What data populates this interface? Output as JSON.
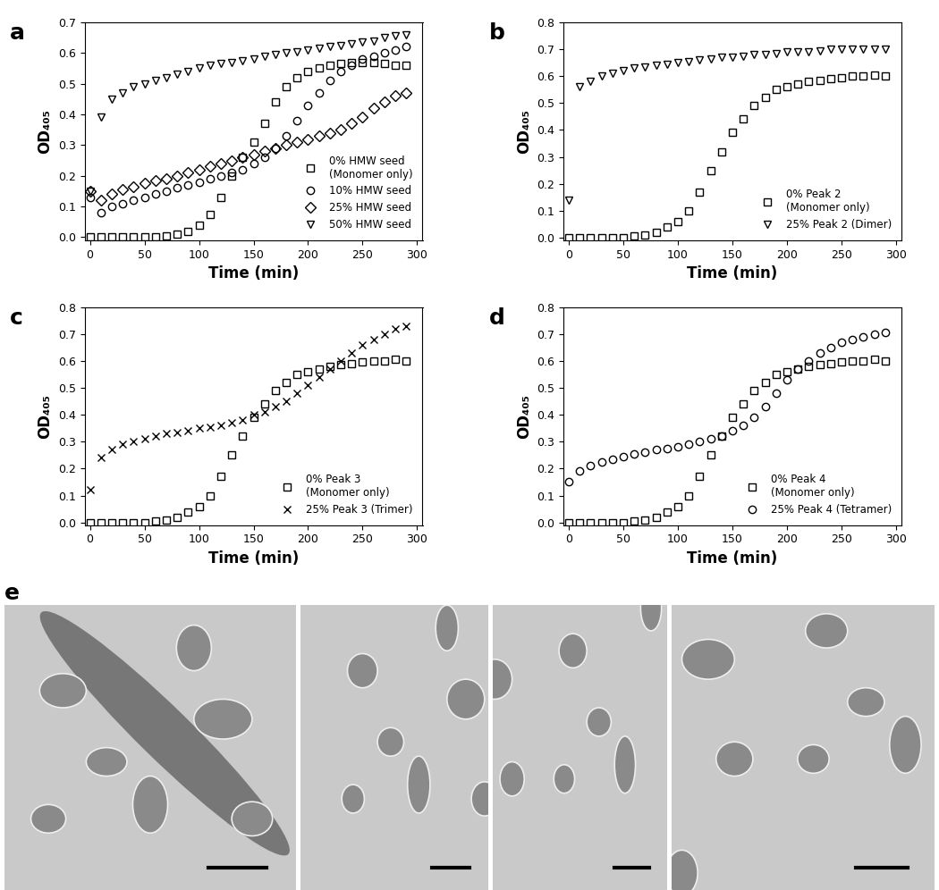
{
  "chart_data": [
    {
      "type": "scatter",
      "title": "a",
      "x_label": "Time (min)",
      "y_label": "OD₄₀₅",
      "x": [
        0,
        10,
        20,
        30,
        40,
        50,
        60,
        70,
        80,
        90,
        100,
        110,
        120,
        130,
        140,
        150,
        160,
        170,
        180,
        190,
        200,
        210,
        220,
        230,
        240,
        250,
        260,
        270,
        280,
        290
      ],
      "xlim": [
        -5,
        305
      ],
      "xticks": [
        0,
        50,
        100,
        150,
        200,
        250,
        300
      ],
      "ylim": [
        -0.01,
        0.7
      ],
      "yticks": [
        0.0,
        0.1,
        0.2,
        0.3,
        0.4,
        0.5,
        0.6,
        0.7
      ],
      "legend": "lower right",
      "series": [
        {
          "name": "0% HMW seed\n(Monomer only)",
          "color": "#000000",
          "marker": "square",
          "values": [
            0,
            0,
            0,
            0,
            0,
            0,
            0.002,
            0.005,
            0.01,
            0.02,
            0.04,
            0.075,
            0.13,
            0.2,
            0.26,
            0.31,
            0.37,
            0.44,
            0.49,
            0.52,
            0.54,
            0.55,
            0.56,
            0.565,
            0.57,
            0.57,
            0.57,
            0.565,
            0.56,
            0.56
          ]
        },
        {
          "name": "10% HMW seed",
          "color": "#000000",
          "marker": "circle",
          "values": [
            0.13,
            0.08,
            0.1,
            0.11,
            0.12,
            0.13,
            0.14,
            0.15,
            0.16,
            0.17,
            0.18,
            0.19,
            0.2,
            0.21,
            0.22,
            0.24,
            0.26,
            0.29,
            0.33,
            0.38,
            0.43,
            0.47,
            0.51,
            0.54,
            0.56,
            0.58,
            0.59,
            0.6,
            0.61,
            0.62
          ]
        },
        {
          "name": "25% HMW seed",
          "color": "#000000",
          "marker": "diamond",
          "values": [
            0.15,
            0.12,
            0.14,
            0.155,
            0.165,
            0.175,
            0.185,
            0.19,
            0.2,
            0.21,
            0.22,
            0.23,
            0.24,
            0.25,
            0.26,
            0.27,
            0.28,
            0.29,
            0.3,
            0.31,
            0.32,
            0.33,
            0.34,
            0.35,
            0.37,
            0.39,
            0.42,
            0.44,
            0.46,
            0.47
          ]
        },
        {
          "name": "50% HMW seed",
          "color": "#000000",
          "marker": "triangle_down",
          "values": [
            0.15,
            0.39,
            0.45,
            0.47,
            0.49,
            0.5,
            0.51,
            0.52,
            0.53,
            0.54,
            0.55,
            0.56,
            0.565,
            0.57,
            0.575,
            0.58,
            0.59,
            0.595,
            0.6,
            0.605,
            0.61,
            0.615,
            0.62,
            0.625,
            0.63,
            0.635,
            0.64,
            0.65,
            0.655,
            0.66
          ]
        }
      ]
    },
    {
      "type": "scatter",
      "title": "b",
      "x_label": "Time (min)",
      "y_label": "OD₄₀₅",
      "x": [
        0,
        10,
        20,
        30,
        40,
        50,
        60,
        70,
        80,
        90,
        100,
        110,
        120,
        130,
        140,
        150,
        160,
        170,
        180,
        190,
        200,
        210,
        220,
        230,
        240,
        250,
        260,
        270,
        280,
        290
      ],
      "xlim": [
        -5,
        305
      ],
      "xticks": [
        0,
        50,
        100,
        150,
        200,
        250,
        300
      ],
      "ylim": [
        -0.01,
        0.8
      ],
      "yticks": [
        0.0,
        0.1,
        0.2,
        0.3,
        0.4,
        0.5,
        0.6,
        0.7,
        0.8
      ],
      "legend": "lower right",
      "series": [
        {
          "name": "0% Peak 2\n(Monomer only)",
          "color": "#000000",
          "marker": "square",
          "values": [
            0,
            0,
            0,
            0,
            0,
            0,
            0.005,
            0.01,
            0.02,
            0.04,
            0.06,
            0.1,
            0.17,
            0.25,
            0.32,
            0.39,
            0.44,
            0.49,
            0.52,
            0.55,
            0.56,
            0.57,
            0.58,
            0.585,
            0.59,
            0.595,
            0.6,
            0.6,
            0.605,
            0.6
          ]
        },
        {
          "name": "25% Peak 2 (Dimer)",
          "color": "#000000",
          "marker": "triangle_down",
          "values": [
            0.14,
            0.56,
            0.58,
            0.6,
            0.61,
            0.62,
            0.63,
            0.635,
            0.64,
            0.645,
            0.65,
            0.655,
            0.66,
            0.665,
            0.67,
            0.67,
            0.675,
            0.68,
            0.68,
            0.685,
            0.69,
            0.69,
            0.69,
            0.695,
            0.7,
            0.7,
            0.7,
            0.7,
            0.7,
            0.7
          ]
        }
      ]
    },
    {
      "type": "scatter",
      "title": "c",
      "x_label": "Time (min)",
      "y_label": "OD₄₀₅",
      "x": [
        0,
        10,
        20,
        30,
        40,
        50,
        60,
        70,
        80,
        90,
        100,
        110,
        120,
        130,
        140,
        150,
        160,
        170,
        180,
        190,
        200,
        210,
        220,
        230,
        240,
        250,
        260,
        270,
        280,
        290
      ],
      "xlim": [
        -5,
        305
      ],
      "xticks": [
        0,
        50,
        100,
        150,
        200,
        250,
        300
      ],
      "ylim": [
        -0.01,
        0.8
      ],
      "yticks": [
        0.0,
        0.1,
        0.2,
        0.3,
        0.4,
        0.5,
        0.6,
        0.7,
        0.8
      ],
      "legend": "lower right",
      "series": [
        {
          "name": "0% Peak 3\n(Monomer only)",
          "color": "#000000",
          "marker": "square",
          "values": [
            0,
            0,
            0,
            0,
            0,
            0,
            0.005,
            0.01,
            0.02,
            0.04,
            0.06,
            0.1,
            0.17,
            0.25,
            0.32,
            0.39,
            0.44,
            0.49,
            0.52,
            0.55,
            0.56,
            0.57,
            0.58,
            0.585,
            0.59,
            0.595,
            0.6,
            0.6,
            0.605,
            0.6
          ]
        },
        {
          "name": "25% Peak 3 (Trimer)",
          "color": "#000000",
          "marker": "x",
          "values": [
            0.12,
            0.24,
            0.27,
            0.29,
            0.3,
            0.31,
            0.32,
            0.33,
            0.335,
            0.34,
            0.35,
            0.355,
            0.36,
            0.37,
            0.38,
            0.4,
            0.41,
            0.43,
            0.45,
            0.48,
            0.51,
            0.54,
            0.57,
            0.6,
            0.63,
            0.66,
            0.68,
            0.7,
            0.72,
            0.73
          ]
        }
      ]
    },
    {
      "type": "scatter",
      "title": "d",
      "x_label": "Time (min)",
      "y_label": "OD₄₀₅",
      "x": [
        0,
        10,
        20,
        30,
        40,
        50,
        60,
        70,
        80,
        90,
        100,
        110,
        120,
        130,
        140,
        150,
        160,
        170,
        180,
        190,
        200,
        210,
        220,
        230,
        240,
        250,
        260,
        270,
        280,
        290
      ],
      "xlim": [
        -5,
        305
      ],
      "xticks": [
        0,
        50,
        100,
        150,
        200,
        250,
        300
      ],
      "ylim": [
        -0.01,
        0.8
      ],
      "yticks": [
        0.0,
        0.1,
        0.2,
        0.3,
        0.4,
        0.5,
        0.6,
        0.7,
        0.8
      ],
      "legend": "lower right",
      "series": [
        {
          "name": "0% Peak 4\n(Monomer only)",
          "color": "#000000",
          "marker": "square",
          "values": [
            0,
            0,
            0,
            0,
            0,
            0,
            0.005,
            0.01,
            0.02,
            0.04,
            0.06,
            0.1,
            0.17,
            0.25,
            0.32,
            0.39,
            0.44,
            0.49,
            0.52,
            0.55,
            0.56,
            0.57,
            0.58,
            0.585,
            0.59,
            0.595,
            0.6,
            0.6,
            0.605,
            0.6
          ]
        },
        {
          "name": "25% Peak 4 (Tetramer)",
          "color": "#000000",
          "marker": "circle",
          "values": [
            0.15,
            0.19,
            0.21,
            0.225,
            0.235,
            0.245,
            0.255,
            0.26,
            0.27,
            0.275,
            0.28,
            0.29,
            0.3,
            0.31,
            0.32,
            0.34,
            0.36,
            0.39,
            0.43,
            0.48,
            0.53,
            0.57,
            0.6,
            0.63,
            0.65,
            0.67,
            0.68,
            0.69,
            0.7,
            0.705
          ]
        }
      ]
    }
  ],
  "images": {
    "label": "e"
  }
}
